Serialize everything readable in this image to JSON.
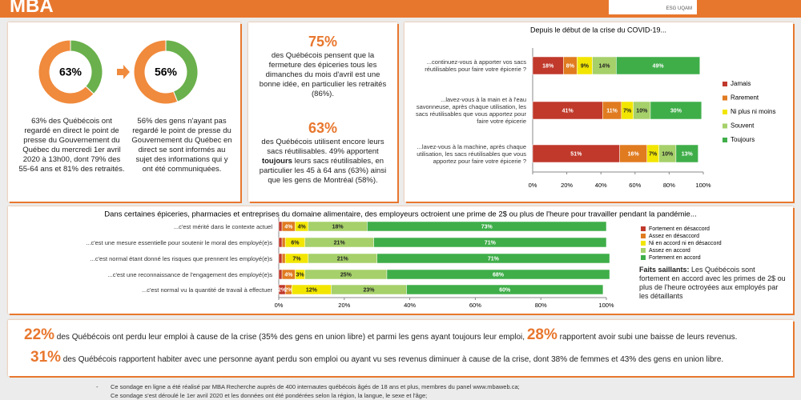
{
  "header": {
    "logo": "MBA",
    "partner": "ESG UQAM"
  },
  "chart_data": [
    {
      "type": "donut",
      "values": [
        63,
        37
      ],
      "value_labels": [
        "63%",
        null
      ],
      "colors": [
        "#f08a3c",
        "#6ab04c"
      ],
      "caption": "63% des Québécois ont regardé en direct le point de presse du Gouvernement du Québec du mercredi 1er avril 2020 à 13h00, dont 79% des 55-64 ans et 81% des retraités."
    },
    {
      "type": "donut",
      "values": [
        56,
        44
      ],
      "value_labels": [
        "56%",
        null
      ],
      "colors": [
        "#f08a3c",
        "#6ab04c"
      ],
      "caption": "56% des gens n'ayant pas regardé le point de presse du Gouvernement du Québec en direct se sont informés au sujet des informations qui y ont été communiquées."
    },
    {
      "type": "hbar_stacked",
      "title": "Depuis le début de la crise du COVID-19...",
      "categories": [
        "...continuez-vous à apporter vos sacs réutilisables pour faire votre épicerie ?",
        "...lavez-vous à la main et à l'eau savonneuse, après chaque utilisation, les sacs réutilisables que vous apportez pour faire votre épicerie",
        "...lavez-vous à la machine, après chaque utilisation, les sacs réutilisables que vous apportez pour faire votre épicerie ?"
      ],
      "series": [
        {
          "name": "Jamais",
          "color": "#c0392b",
          "values": [
            18,
            41,
            51
          ],
          "value_labels": [
            "18%",
            "41%",
            "51%"
          ]
        },
        {
          "name": "Rarement",
          "color": "#e07b20",
          "values": [
            8,
            11,
            16
          ],
          "value_labels": [
            "8%",
            "11%",
            "16%"
          ]
        },
        {
          "name": "Ni plus ni moins",
          "color": "#f2e600",
          "values": [
            9,
            7,
            7
          ],
          "value_labels": [
            "9%",
            "7%",
            "7%"
          ]
        },
        {
          "name": "Souvent",
          "color": "#a6d06a",
          "values": [
            14,
            10,
            10
          ],
          "value_labels": [
            "14%",
            "10%",
            "10%"
          ]
        },
        {
          "name": "Toujours",
          "color": "#3fae49",
          "values": [
            49,
            30,
            13
          ],
          "value_labels": [
            "49%",
            "30%",
            "13%"
          ]
        }
      ],
      "xlim": [
        0,
        100
      ],
      "xticks": [
        {
          "value": 0,
          "label": "0%"
        },
        {
          "value": 20,
          "label": "20%"
        },
        {
          "value": 40,
          "label": "40%"
        },
        {
          "value": 60,
          "label": "60%"
        },
        {
          "value": 80,
          "label": "80%"
        },
        {
          "value": 100,
          "label": "100%"
        }
      ],
      "legend": "right"
    },
    {
      "type": "hbar_stacked",
      "title": "Dans certaines épiceries, pharmacies et entreprises du domaine alimentaire, des employeurs octroient une prime de 2$ ou plus de l'heure pour travailler pendant la pandémie...",
      "categories": [
        "...c'est mérité dans le contexte actuel",
        "...c'est une mesure essentielle pour soutenir le moral des employé(e)s",
        "...c'est normal étant donné les risques que prennent les employé(e)s",
        "...c'est une reconnaissance de l'engagement des employé(e)s",
        "...c'est normal vu la quantité de travail à effectuer"
      ],
      "series": [
        {
          "name": "Fortement en désaccord",
          "color": "#c0392b",
          "values": [
            1,
            1,
            1,
            1,
            2
          ],
          "value_labels": [
            null,
            null,
            null,
            null,
            "2%"
          ]
        },
        {
          "name": "Assez en désaccord",
          "color": "#e07b20",
          "values": [
            4,
            1,
            1,
            4,
            2
          ],
          "value_labels": [
            "4%",
            null,
            null,
            "4%",
            "2%"
          ]
        },
        {
          "name": "Ni en accord ni en désaccord",
          "color": "#f2e600",
          "values": [
            4,
            6,
            7,
            3,
            12
          ],
          "value_labels": [
            "4%",
            "6%",
            "7%",
            "3%",
            "12%"
          ]
        },
        {
          "name": "Assez en accord",
          "color": "#a6d06a",
          "values": [
            18,
            21,
            21,
            25,
            23
          ],
          "value_labels": [
            "18%",
            "21%",
            "21%",
            "25%",
            "23%"
          ]
        },
        {
          "name": "Fortement en accord",
          "color": "#3fae49",
          "values": [
            73,
            71,
            71,
            68,
            60
          ],
          "value_labels": [
            "73%",
            "71%",
            "71%",
            "68%",
            "60%"
          ]
        }
      ],
      "xlim": [
        0,
        100
      ],
      "xticks": [
        {
          "value": 0,
          "label": "0%"
        },
        {
          "value": 20,
          "label": "20%"
        },
        {
          "value": 40,
          "label": "40%"
        },
        {
          "value": 60,
          "label": "60%"
        },
        {
          "value": 80,
          "label": "80%"
        },
        {
          "value": 100,
          "label": "100%"
        }
      ],
      "legend": "right"
    }
  ],
  "stats": [
    {
      "number": "75%",
      "text": "des Québécois pensent que la fermeture des épiceries tous les dimanches du mois d'avril est une bonne idée, en particulier les retraités (86%)."
    },
    {
      "number": "63%",
      "text_start": "des Québécois utilisent encore leurs sacs réutilisables. 49% apportent ",
      "text_bold": "toujours",
      "text_end": " leurs sacs réutilisables, en particulier les 45 à 64 ans (63%) ainsi que les gens de Montréal (58%)."
    }
  ],
  "highlights": {
    "title": "Faits saillants:",
    "text": " Les Québécois sont fortement en accord avec les primes de 2$ ou plus de l'heure octroyées aux employés par les détaillants"
  },
  "bottom": {
    "line1": [
      "22%",
      " des Québécois ont perdu leur emploi à cause de la crise (35% des gens en union libre) et parmi les gens ayant toujours leur emploi, ",
      "28%",
      " rapportent avoir subi une baisse de leurs revenus."
    ],
    "line2": [
      "31%",
      " des Québécois rapportent habiter avec une personne ayant perdu son emploi ou ayant vu ses revenus diminuer à cause de la crise, dont 38% de femmes et 43% des gens en union libre."
    ]
  },
  "footer": [
    "Ce sondage en ligne a été réalisé par MBA Recherche auprès de 400 internautes québécois âgés de 18 ans et plus, membres du panel www.mbaweb.ca;",
    "Ce sondage s'est déroulé le 1er avril 2020 et les données ont été pondérées selon la région, la langue, le sexe et l'âge;"
  ]
}
